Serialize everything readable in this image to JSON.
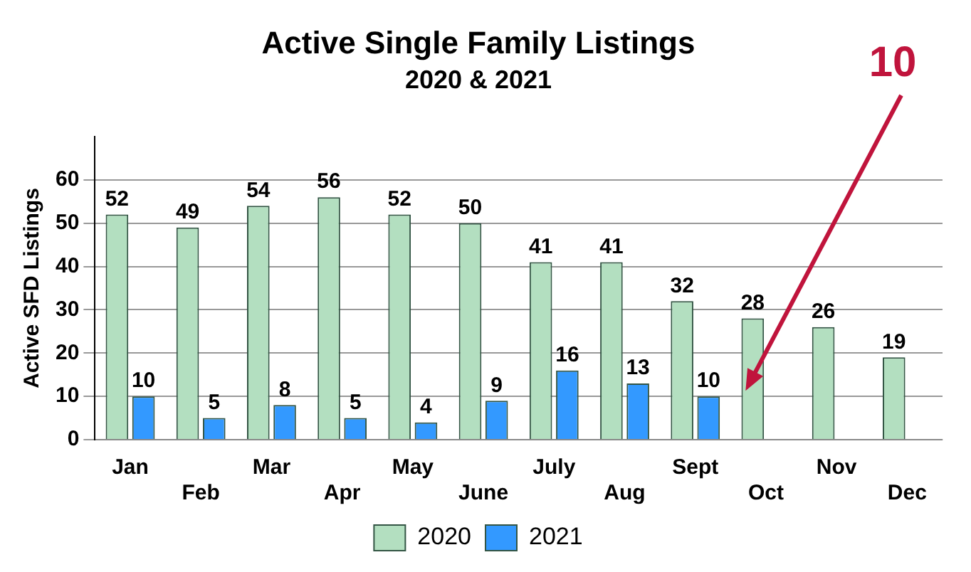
{
  "chart_data": {
    "type": "bar",
    "title": "Active Single Family Listings",
    "subtitle": "2020 & 2021",
    "ylabel": "Active SFD Listings",
    "categories": [
      "Jan",
      "Feb",
      "Mar",
      "Apr",
      "May",
      "June",
      "July",
      "Aug",
      "Sept",
      "Oct",
      "Nov",
      "Dec"
    ],
    "series": [
      {
        "name": "2020",
        "color": "#b3dfc0",
        "values": [
          52,
          49,
          54,
          56,
          52,
          50,
          41,
          41,
          32,
          28,
          26,
          19
        ]
      },
      {
        "name": "2021",
        "color": "#3399ff",
        "values": [
          10,
          5,
          8,
          5,
          4,
          9,
          16,
          13,
          10,
          null,
          null,
          null
        ]
      }
    ],
    "ylim": [
      0,
      70
    ],
    "yticks": [
      0,
      10,
      20,
      30,
      40,
      50,
      60
    ],
    "grid": "y",
    "legend": "bottom",
    "data_labels": true,
    "annotations": [
      "10"
    ]
  }
}
